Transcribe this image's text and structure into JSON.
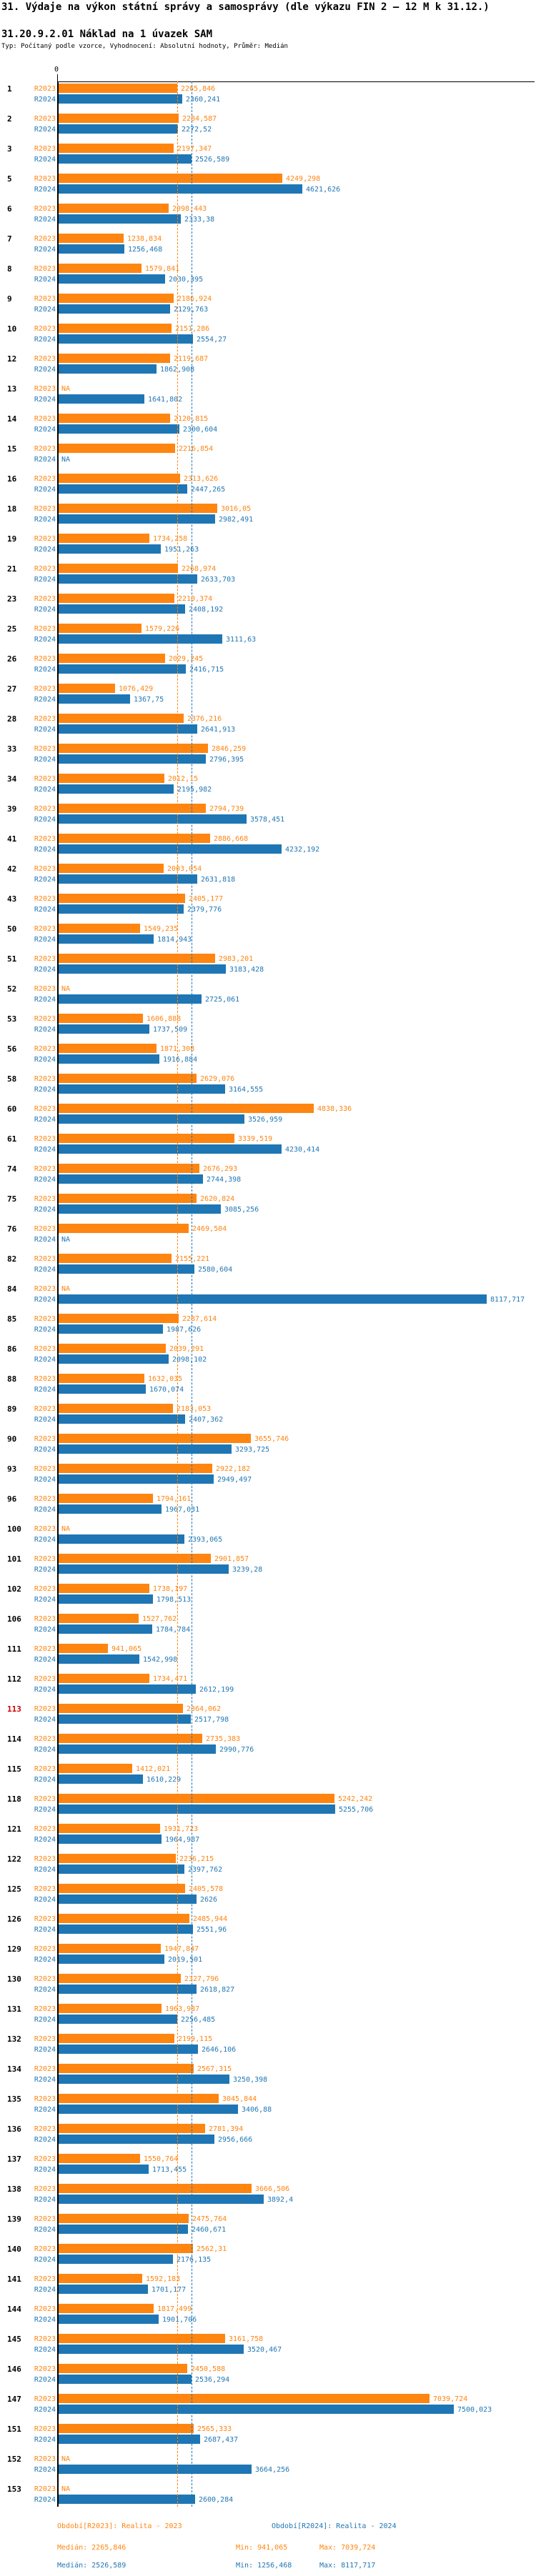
{
  "header": {
    "title": "31. Výdaje na výkon státní správy a samosprávy (dle výkazu FIN 2 – 12 M k 31.12.)",
    "subtitle": "31.20.9.2.01 Náklad na 1 úvazek SAM",
    "meta": "Typ: Počítaný podle vzorce, Vyhodnocení: Absolutní hodnoty, Průměr: Medián"
  },
  "chart_data": {
    "type": "bar",
    "orientation": "horizontal",
    "axis_zero_label": "0",
    "xlim": [
      0,
      8117.717
    ],
    "grid": false,
    "legend_position": "bottom",
    "series_names": [
      "R2023",
      "R2024"
    ],
    "colors": {
      "R2023": "#FF8511",
      "R2024": "#1F76B4",
      "highlight": "#CC0000"
    },
    "highlighted_categories": [
      "113"
    ],
    "median_R2023": 2265.846,
    "median_R2024": 2526.589,
    "na_text": "NA",
    "rows": [
      [
        "1",
        "2265,846",
        "2360,241"
      ],
      [
        "2",
        "2284,587",
        "2272,52"
      ],
      [
        "3",
        "2197,347",
        "2526,589"
      ],
      [
        "5",
        "4249,298",
        "4621,626"
      ],
      [
        "6",
        "2098,443",
        "2333,38"
      ],
      [
        "7",
        "1238,834",
        "1256,468"
      ],
      [
        "8",
        "1579,841",
        "2030,395"
      ],
      [
        "9",
        "2186,924",
        "2129,763"
      ],
      [
        "10",
        "2151,286",
        "2554,27"
      ],
      [
        "12",
        "2119,687",
        "1862,908"
      ],
      [
        "13",
        "NA",
        "1641,802"
      ],
      [
        "14",
        "2120,815",
        "2300,604"
      ],
      [
        "15",
        "2216,854",
        "NA"
      ],
      [
        "16",
        "2313,626",
        "2447,265"
      ],
      [
        "18",
        "3016,05",
        "2982,491"
      ],
      [
        "19",
        "1734,258",
        "1951,263"
      ],
      [
        "21",
        "2268,974",
        "2633,703"
      ],
      [
        "23",
        "2210,374",
        "2408,192"
      ],
      [
        "25",
        "1579,226",
        "3111,63"
      ],
      [
        "26",
        "2029,245",
        "2416,715"
      ],
      [
        "27",
        "1076,429",
        "1367,75"
      ],
      [
        "28",
        "2376,216",
        "2641,913"
      ],
      [
        "33",
        "2846,259",
        "2796,395"
      ],
      [
        "34",
        "2012,15",
        "2195,982"
      ],
      [
        "39",
        "2794,739",
        "3578,451"
      ],
      [
        "41",
        "2886,668",
        "4232,192"
      ],
      [
        "42",
        "2003,054",
        "2631,818"
      ],
      [
        "43",
        "2405,177",
        "2379,776"
      ],
      [
        "50",
        "1549,235",
        "1814,943"
      ],
      [
        "51",
        "2983,201",
        "3183,428"
      ],
      [
        "52",
        "NA",
        "2725,061"
      ],
      [
        "53",
        "1606,888",
        "1737,509"
      ],
      [
        "56",
        "1871,308",
        "1916,884"
      ],
      [
        "58",
        "2629,076",
        "3164,555"
      ],
      [
        "60",
        "4838,336",
        "3526,959"
      ],
      [
        "61",
        "3339,519",
        "4230,414"
      ],
      [
        "74",
        "2676,293",
        "2744,398"
      ],
      [
        "75",
        "2620,824",
        "3085,256"
      ],
      [
        "76",
        "2469,504",
        "NA"
      ],
      [
        "82",
        "2155,221",
        "2580,604"
      ],
      [
        "84",
        "NA",
        "8117,717"
      ],
      [
        "85",
        "2287,614",
        "1987,626"
      ],
      [
        "86",
        "2039,291",
        "2098,102"
      ],
      [
        "88",
        "1632,035",
        "1670,074"
      ],
      [
        "89",
        "2183,053",
        "2407,362"
      ],
      [
        "90",
        "3655,746",
        "3293,725"
      ],
      [
        "93",
        "2922,182",
        "2949,497"
      ],
      [
        "96",
        "1794,161",
        "1967,031"
      ],
      [
        "100",
        "NA",
        "2393,065"
      ],
      [
        "101",
        "2901,857",
        "3239,28"
      ],
      [
        "102",
        "1738,197",
        "1798,513"
      ],
      [
        "106",
        "1527,762",
        "1784,784"
      ],
      [
        "111",
        "941,065",
        "1542,998"
      ],
      [
        "112",
        "1734,471",
        "2612,199"
      ],
      [
        "113",
        "2364,062",
        "2517,798"
      ],
      [
        "114",
        "2735,383",
        "2990,776"
      ],
      [
        "115",
        "1412,021",
        "1610,229"
      ],
      [
        "118",
        "5242,242",
        "5255,706"
      ],
      [
        "121",
        "1931,723",
        "1964,987"
      ],
      [
        "122",
        "2236,215",
        "2397,762"
      ],
      [
        "125",
        "2405,578",
        "2626"
      ],
      [
        "126",
        "2485,944",
        "2551,96"
      ],
      [
        "129",
        "1947,847",
        "2019,501"
      ],
      [
        "130",
        "2327,796",
        "2618,827"
      ],
      [
        "131",
        "1963,987",
        "2256,485"
      ],
      [
        "132",
        "2199,115",
        "2646,106"
      ],
      [
        "134",
        "2567,315",
        "3250,398"
      ],
      [
        "135",
        "3045,844",
        "3406,88"
      ],
      [
        "136",
        "2781,394",
        "2956,666"
      ],
      [
        "137",
        "1550,764",
        "1713,455"
      ],
      [
        "138",
        "3666,506",
        "3892,4"
      ],
      [
        "139",
        "2475,764",
        "2460,671"
      ],
      [
        "140",
        "2562,31",
        "2176,135"
      ],
      [
        "141",
        "1592,183",
        "1701,177"
      ],
      [
        "144",
        "1817,499",
        "1901,706"
      ],
      [
        "145",
        "3161,758",
        "3520,467"
      ],
      [
        "146",
        "2450,588",
        "2536,294"
      ],
      [
        "147",
        "7039,724",
        "7500,023"
      ],
      [
        "151",
        "2565,333",
        "2687,437"
      ],
      [
        "152",
        "NA",
        "3664,256"
      ],
      [
        "153",
        "NA",
        "2600,284"
      ]
    ]
  },
  "legend": {
    "period_r2023": "Období[R2023]: Realita - 2023",
    "period_r2024": "Období[R2024]: Realita - 2024",
    "stats_r2023": {
      "median": "Medián: 2265,846",
      "min": "Min: 941,065",
      "max": "Max: 7039,724"
    },
    "stats_r2024": {
      "median": "Medián: 2526,589",
      "min": "Min: 1256,468",
      "max": "Max: 8117,717"
    }
  }
}
